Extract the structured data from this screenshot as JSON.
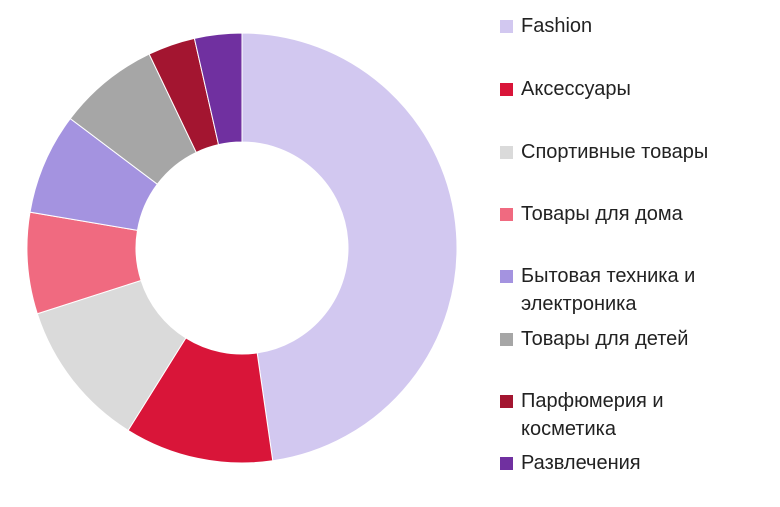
{
  "chart_data": {
    "type": "pie",
    "variant": "donut",
    "categories": [
      "Fashion",
      "Аксессуары",
      "Спортивные товары",
      "Товары для дома",
      "Бытовая техника и\nэлектроника",
      "Товары для детей",
      "Парфюмерия и\nкосметика",
      "Развлечения"
    ],
    "values": [
      47,
      11,
      11,
      7.5,
      7.5,
      7.5,
      3.5,
      3.5
    ],
    "colors": [
      "#D2C8F0",
      "#D91539",
      "#DADADA",
      "#F06A80",
      "#A493E0",
      "#A6A6A6",
      "#A31530",
      "#7030A0"
    ],
    "legend_position": "right",
    "title": ""
  }
}
